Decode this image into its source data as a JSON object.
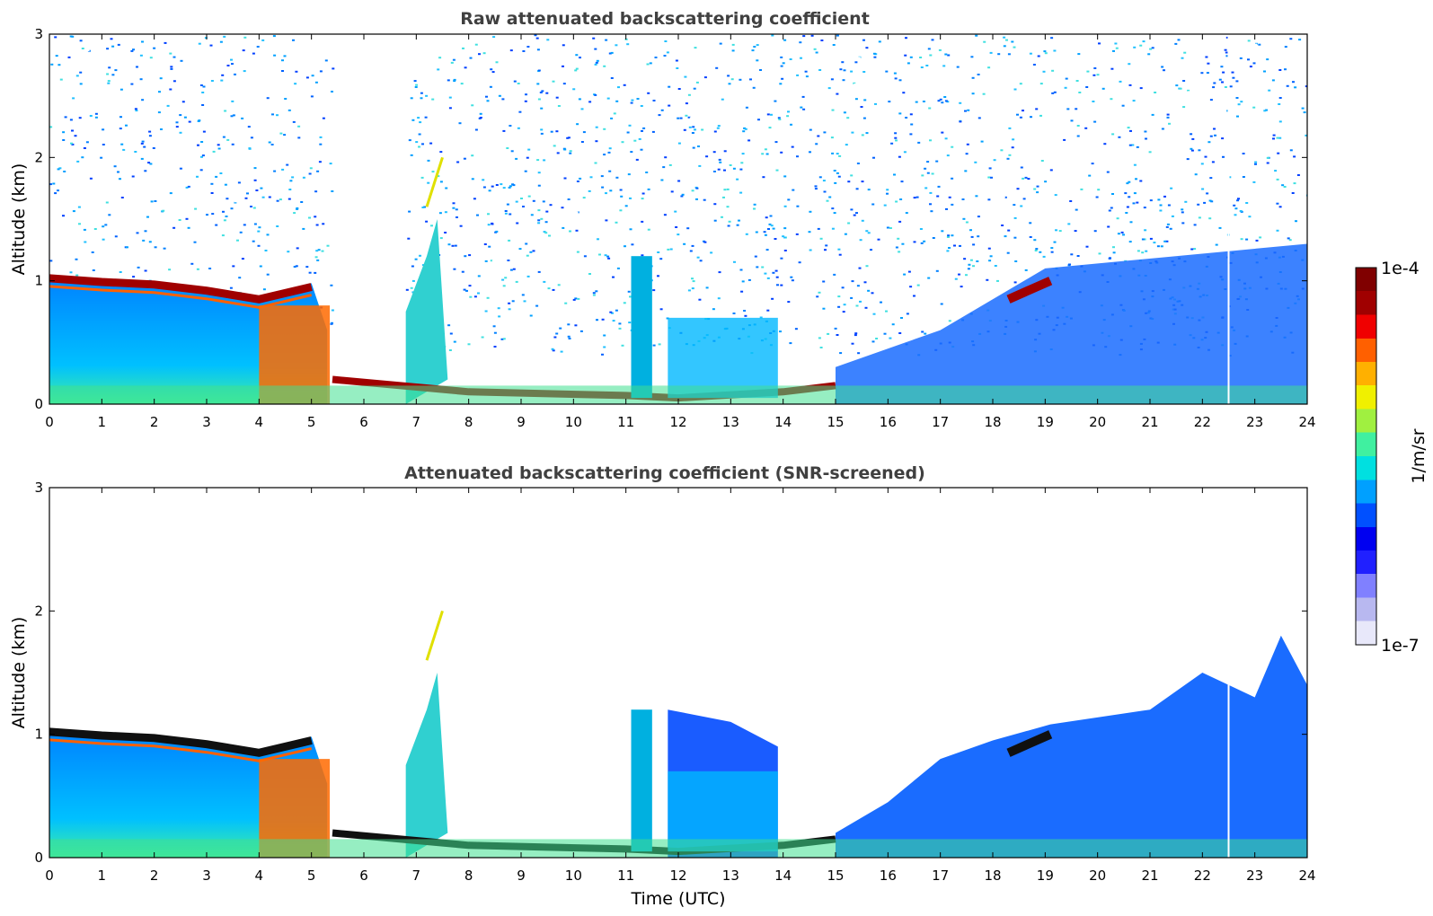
{
  "chart_data": [
    {
      "type": "heatmap",
      "title": "Raw attenuated backscattering coefficient",
      "xlabel": "",
      "ylabel": "Altitude (km)",
      "xlim": [
        0,
        24
      ],
      "ylim": [
        0,
        3
      ],
      "x_ticks": [
        "0",
        "1",
        "2",
        "3",
        "4",
        "5",
        "6",
        "7",
        "8",
        "9",
        "10",
        "11",
        "12",
        "13",
        "14",
        "15",
        "16",
        "17",
        "18",
        "19",
        "20",
        "21",
        "22",
        "23",
        "24"
      ],
      "y_ticks": [
        "0",
        "1",
        "2",
        "3"
      ],
      "screened": false,
      "features": {
        "boundary_layer_top_km": [
          [
            0,
            1.05
          ],
          [
            1,
            1.02
          ],
          [
            2,
            1.0
          ],
          [
            3,
            0.95
          ],
          [
            4,
            0.88
          ],
          [
            5,
            0.98
          ],
          [
            5.3,
            0.6
          ]
        ],
        "low_cloud_base_km": [
          [
            5.4,
            0.2
          ],
          [
            8,
            0.1
          ],
          [
            11,
            0.07
          ],
          [
            12,
            0.05
          ],
          [
            14,
            0.1
          ],
          [
            15,
            0.15
          ]
        ],
        "elevated_layer_km": [
          [
            18.3,
            0.85
          ],
          [
            19.1,
            1.0
          ]
        ],
        "missing_profile_utc": 22.5
      }
    },
    {
      "type": "heatmap",
      "title": "Attenuated backscattering coefficient (SNR-screened)",
      "xlabel": "Time (UTC)",
      "ylabel": "Altitude (km)",
      "xlim": [
        0,
        24
      ],
      "ylim": [
        0,
        3
      ],
      "x_ticks": [
        "0",
        "1",
        "2",
        "3",
        "4",
        "5",
        "6",
        "7",
        "8",
        "9",
        "10",
        "11",
        "12",
        "13",
        "14",
        "15",
        "16",
        "17",
        "18",
        "19",
        "20",
        "21",
        "22",
        "23",
        "24"
      ],
      "y_ticks": [
        "0",
        "1",
        "2",
        "3"
      ],
      "screened": true
    }
  ],
  "colorbar": {
    "label": "1/m/sr",
    "max_label": "1e-4",
    "min_label": "1e-7",
    "colors": [
      "#e8e8fa",
      "#b8b8f0",
      "#8080ff",
      "#2020ff",
      "#0000f0",
      "#0050ff",
      "#00a0ff",
      "#00e0e0",
      "#40f0a0",
      "#a0f040",
      "#f0f000",
      "#ffb000",
      "#ff6000",
      "#f00000",
      "#a00000",
      "#800000"
    ]
  }
}
